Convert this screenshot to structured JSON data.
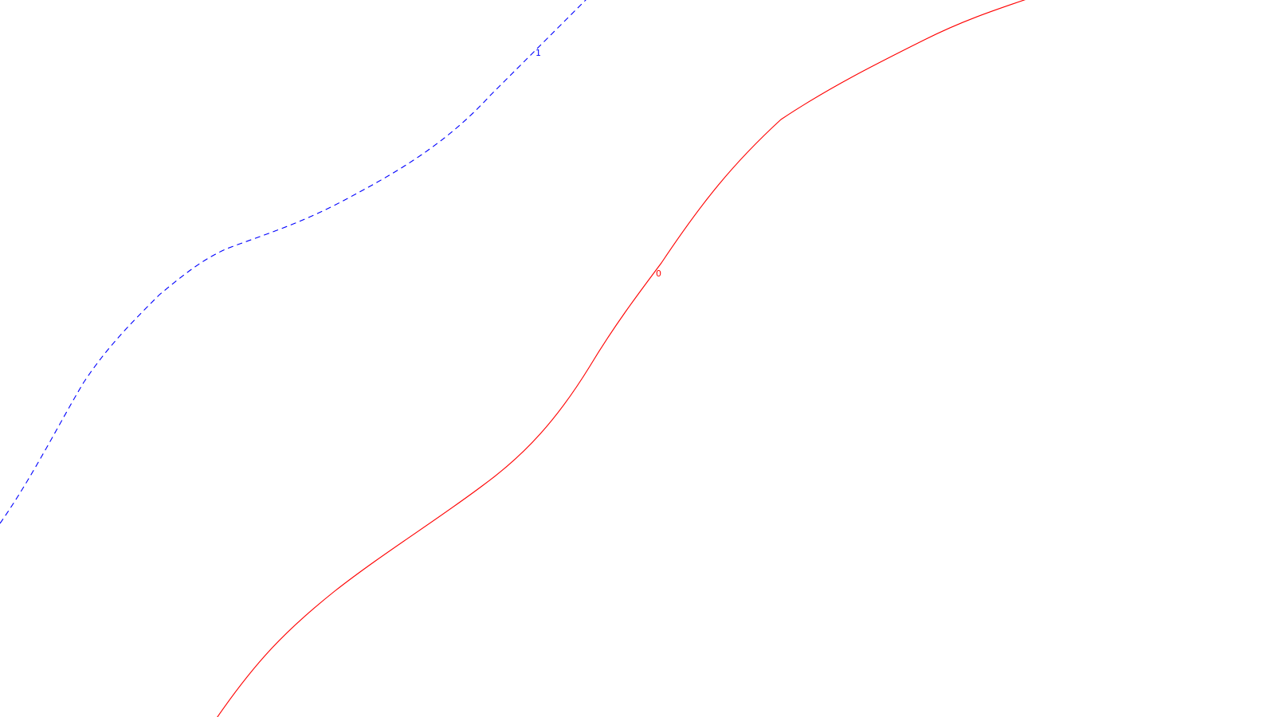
{
  "background_color": "#ffffff",
  "contours": [
    {
      "label": "1",
      "color": "#0000ff",
      "style": "dashed"
    },
    {
      "label": "0",
      "color": "#ff0000",
      "style": "solid"
    }
  ]
}
